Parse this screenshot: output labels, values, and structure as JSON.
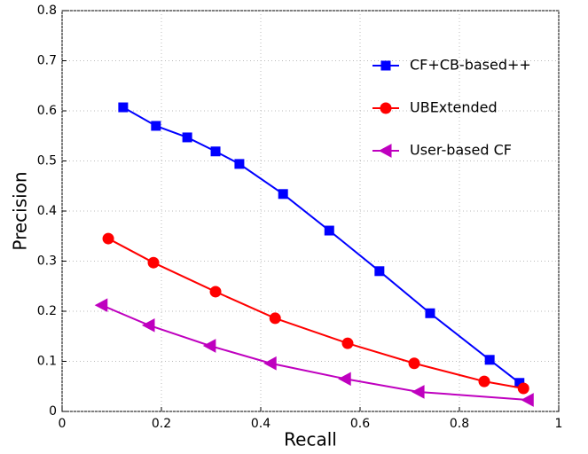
{
  "chart_data": {
    "type": "line",
    "x_label": "Recall",
    "y_label": "Precision",
    "xlim": [
      0,
      1
    ],
    "ylim": [
      0,
      0.8
    ],
    "xticks": [
      0,
      0.2,
      0.4,
      0.6,
      0.8,
      1
    ],
    "yticks": [
      0,
      0.1,
      0.2,
      0.3,
      0.4,
      0.5,
      0.6,
      0.7,
      0.8
    ],
    "grid": true,
    "legend": "upper right",
    "series": [
      {
        "name": "CF+CB-based++",
        "color": "#0000ff",
        "marker": "square",
        "x": [
          0.123,
          0.189,
          0.252,
          0.309,
          0.357,
          0.445,
          0.538,
          0.639,
          0.741,
          0.861,
          0.921
        ],
        "values": [
          0.607,
          0.57,
          0.547,
          0.519,
          0.494,
          0.434,
          0.361,
          0.28,
          0.196,
          0.103,
          0.057
        ]
      },
      {
        "name": "UBExtended",
        "color": "#ff0000",
        "marker": "circle",
        "x": [
          0.093,
          0.184,
          0.309,
          0.429,
          0.575,
          0.709,
          0.85,
          0.929
        ],
        "values": [
          0.345,
          0.297,
          0.239,
          0.186,
          0.136,
          0.096,
          0.06,
          0.046
        ]
      },
      {
        "name": "User-based CF",
        "color": "#bf00bf",
        "marker": "triangle-left",
        "x": [
          0.08,
          0.175,
          0.298,
          0.42,
          0.57,
          0.718,
          0.938
        ],
        "values": [
          0.212,
          0.172,
          0.131,
          0.096,
          0.065,
          0.039,
          0.023
        ]
      }
    ]
  }
}
